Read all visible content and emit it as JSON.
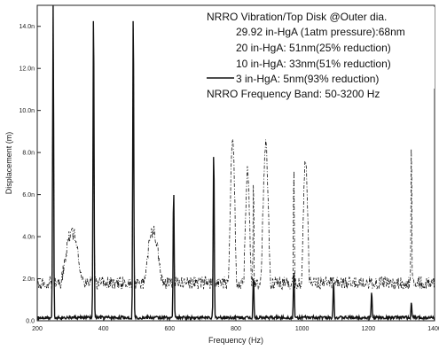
{
  "chart_data": {
    "type": "line",
    "xlabel": "Frequency (Hz)",
    "ylabel": "Displacement (m)",
    "xlim": [
      200,
      1400
    ],
    "ylim": [
      0,
      15
    ],
    "x_ticks": [
      "200",
      "400",
      "600",
      "800",
      "1000",
      "1200",
      "1400"
    ],
    "y_ticks": [
      "0.0",
      "2.0n",
      "4.0n",
      "6.0n",
      "8.0n",
      "10.0n",
      "12.0n",
      "14.0n"
    ],
    "y_tick_values": [
      0,
      2,
      4,
      6,
      8,
      10,
      12,
      14
    ],
    "x_tick_values": [
      200,
      400,
      600,
      800,
      1000,
      1200,
      1400
    ],
    "grid": false,
    "legend_position": "top-right",
    "legend_lines": [
      "NRRO Vibration/Top Disk @Outer dia.",
      "29.92 in-HgA (1atm pressure):68nm",
      "20 in-HgA: 51nm(25% reduction)",
      "10 in-HgA: 33nm(51% reduction)",
      "3 in-HgA: 5nm(93% reduction)",
      "NRRO Frequency Band: 50-3200 Hz"
    ],
    "series": [
      {
        "style": "dash-dot",
        "peaks": [
          {
            "x": 248,
            "y": 15
          },
          {
            "x": 370,
            "y": 15
          },
          {
            "x": 490,
            "y": 15
          },
          {
            "x": 612,
            "y": 6.3
          },
          {
            "x": 733,
            "y": 8.2
          },
          {
            "x": 853,
            "y": 6.8
          },
          {
            "x": 975,
            "y": 7.5
          },
          {
            "x": 1095,
            "y": 2.1
          },
          {
            "x": 1210,
            "y": 1.8
          },
          {
            "x": 1330,
            "y": 8.6
          }
        ],
        "humps": [
          {
            "x": 305,
            "y": 4.2,
            "w": 35
          },
          {
            "x": 550,
            "y": 4.2,
            "w": 30
          },
          {
            "x": 790,
            "y": 8.8,
            "w": 10
          },
          {
            "x": 835,
            "y": 7.2,
            "w": 10
          },
          {
            "x": 890,
            "y": 8.3,
            "w": 12
          },
          {
            "x": 1010,
            "y": 7.8,
            "w": 10
          }
        ],
        "baseline": 1.8
      },
      {
        "style": "solid",
        "peaks": [
          {
            "x": 248,
            "y": 15
          },
          {
            "x": 370,
            "y": 15
          },
          {
            "x": 490,
            "y": 15
          },
          {
            "x": 612,
            "y": 6.3
          },
          {
            "x": 733,
            "y": 8.2
          },
          {
            "x": 853,
            "y": 2.1
          },
          {
            "x": 975,
            "y": 2.4
          },
          {
            "x": 1095,
            "y": 1.9
          },
          {
            "x": 1210,
            "y": 1.4
          },
          {
            "x": 1330,
            "y": 0.9
          }
        ],
        "humps": [],
        "baseline": 0.15
      }
    ]
  }
}
